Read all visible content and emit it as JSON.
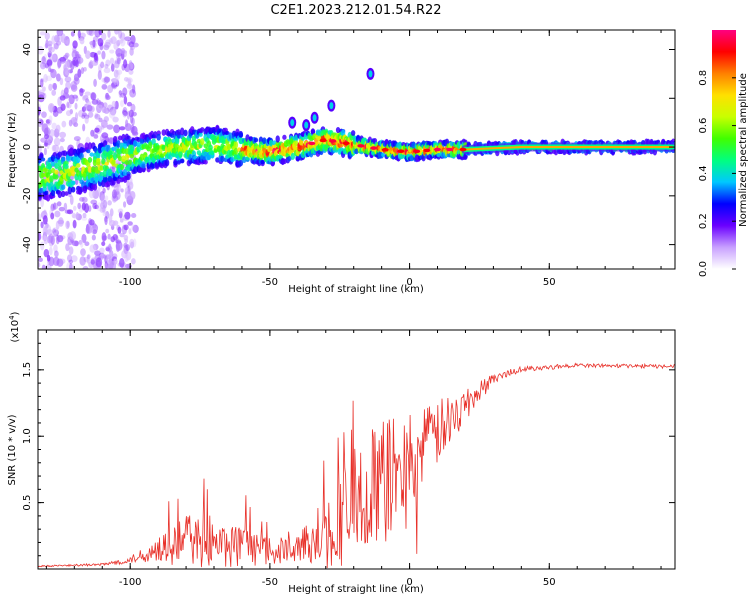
{
  "title": "C2E1.2023.212.01.54.R22",
  "chart_data": [
    {
      "type": "heatmap",
      "xlabel": "Height of straight line (km)",
      "ylabel": "Frequency (Hz)",
      "xlim": [
        -133,
        95
      ],
      "ylim": [
        -50,
        48
      ],
      "xticks": [
        -100,
        -50,
        0,
        50
      ],
      "yticks": [
        -40,
        -20,
        0,
        20,
        40
      ],
      "colorbar": {
        "label": "Normalized spectral amplitude",
        "range": [
          0,
          1
        ],
        "ticks": [
          0.0,
          0.2,
          0.4,
          0.6,
          0.8
        ],
        "tick_labels": [
          "0.0",
          "0.2",
          "0.4",
          "0.6",
          "0.8"
        ],
        "colormap": [
          "#ffffff",
          "#c8a0ff",
          "#6a00ff",
          "#0000ff",
          "#00c8ff",
          "#00ff80",
          "#40ff00",
          "#c8ff00",
          "#ffe000",
          "#ff8000",
          "#ff0000",
          "#ff0080"
        ]
      },
      "ridge": [
        {
          "x": -130,
          "f": -12
        },
        {
          "x": -120,
          "f": -10
        },
        {
          "x": -110,
          "f": -7
        },
        {
          "x": -100,
          "f": -4
        },
        {
          "x": -90,
          "f": -1
        },
        {
          "x": -80,
          "f": 0
        },
        {
          "x": -70,
          "f": 1
        },
        {
          "x": -60,
          "f": -1
        },
        {
          "x": -50,
          "f": -2
        },
        {
          "x": -40,
          "f": 0
        },
        {
          "x": -30,
          "f": 3
        },
        {
          "x": -20,
          "f": 1
        },
        {
          "x": -10,
          "f": -1
        },
        {
          "x": 0,
          "f": -2
        },
        {
          "x": 10,
          "f": -1
        },
        {
          "x": 20,
          "f": -1
        },
        {
          "x": 40,
          "f": 0
        },
        {
          "x": 94,
          "f": 0
        }
      ],
      "features": [
        {
          "x": -14,
          "f": 30
        },
        {
          "x": -28,
          "f": 17
        },
        {
          "x": -34,
          "f": 12
        },
        {
          "x": -37,
          "f": 9
        },
        {
          "x": -42,
          "f": 10
        }
      ]
    },
    {
      "type": "line",
      "xlabel": "Height of straight line (km)",
      "ylabel": "SNR (10 * v/v)",
      "y_multiplier": "(x10",
      "y_multiplier_exp": "4",
      "xlim": [
        -133,
        95
      ],
      "ylim": [
        0,
        1.8
      ],
      "xticks": [
        -100,
        -50,
        0,
        50
      ],
      "yticks": [
        0.5,
        1.0,
        1.5
      ],
      "ytick_labels": [
        "0.5",
        "1.0",
        "1.5"
      ],
      "color": "#e8312a",
      "envelope": [
        {
          "x": -133,
          "base": 0.02,
          "amp": 0.01
        },
        {
          "x": -110,
          "base": 0.03,
          "amp": 0.02
        },
        {
          "x": -100,
          "base": 0.06,
          "amp": 0.05
        },
        {
          "x": -90,
          "base": 0.12,
          "amp": 0.2
        },
        {
          "x": -80,
          "base": 0.15,
          "amp": 0.4
        },
        {
          "x": -70,
          "base": 0.14,
          "amp": 0.35
        },
        {
          "x": -60,
          "base": 0.12,
          "amp": 0.3
        },
        {
          "x": -50,
          "base": 0.1,
          "amp": 0.2
        },
        {
          "x": -40,
          "base": 0.12,
          "amp": 0.2
        },
        {
          "x": -30,
          "base": 0.2,
          "amp": 0.6
        },
        {
          "x": -20,
          "base": 0.35,
          "amp": 0.9
        },
        {
          "x": -10,
          "base": 0.5,
          "amp": 1.0
        },
        {
          "x": 0,
          "base": 0.7,
          "amp": 0.7
        },
        {
          "x": 10,
          "base": 0.95,
          "amp": 0.5
        },
        {
          "x": 20,
          "base": 1.2,
          "amp": 0.25
        },
        {
          "x": 30,
          "base": 1.42,
          "amp": 0.08
        },
        {
          "x": 40,
          "base": 1.5,
          "amp": 0.04
        },
        {
          "x": 60,
          "base": 1.53,
          "amp": 0.03
        },
        {
          "x": 95,
          "base": 1.52,
          "amp": 0.03
        }
      ]
    }
  ]
}
